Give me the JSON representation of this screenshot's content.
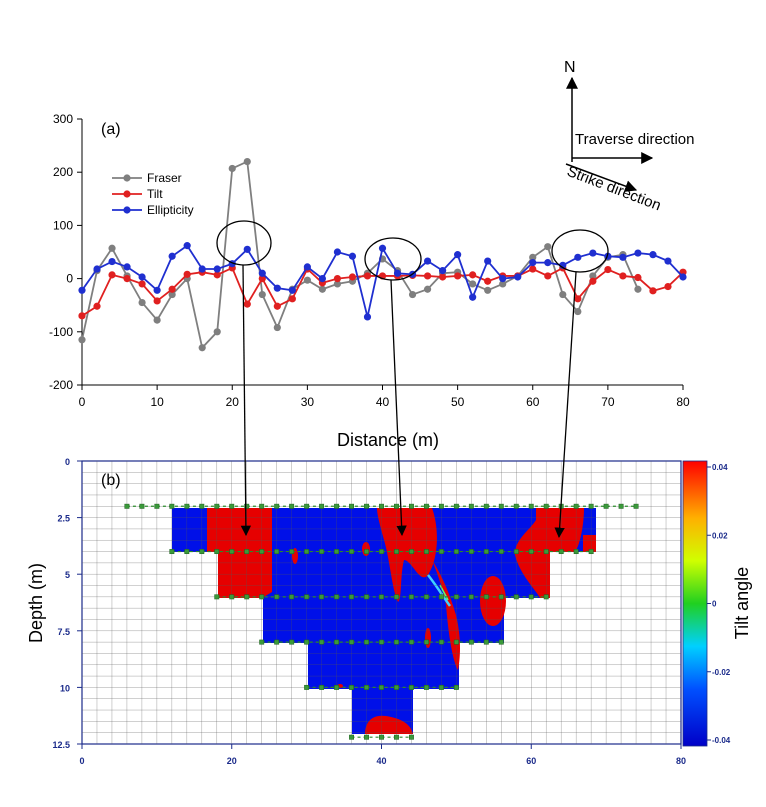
{
  "chart_data": [
    {
      "type": "line",
      "panel_label": "(a)",
      "xlabel": "Distance (m)",
      "ylabel": "",
      "xlim": [
        0,
        80
      ],
      "ylim": [
        -200,
        300
      ],
      "xticks": [
        0,
        10,
        20,
        30,
        40,
        50,
        60,
        70,
        80
      ],
      "yticks": [
        300,
        200,
        100,
        0,
        -100,
        -200
      ],
      "legend_position": "left",
      "series": [
        {
          "name": "Fraser",
          "color": "#7f7f7f",
          "x": [
            0,
            2,
            4,
            6,
            8,
            10,
            12,
            14,
            16,
            18,
            20,
            22,
            24,
            26,
            28,
            30,
            32,
            34,
            36,
            38,
            40,
            42,
            44,
            46,
            48,
            50,
            52,
            54,
            56,
            58,
            60,
            62,
            64,
            66,
            68,
            70,
            72,
            74
          ],
          "values": [
            -115,
            15,
            57,
            5,
            -45,
            -78,
            -30,
            0,
            -130,
            -100,
            207,
            220,
            -30,
            -92,
            -20,
            -3,
            -20,
            -10,
            -5,
            10,
            37,
            15,
            -30,
            -20,
            10,
            12,
            -10,
            -22,
            -10,
            5,
            40,
            60,
            -30,
            -62,
            5,
            40,
            45,
            -20
          ]
        },
        {
          "name": "Tilt",
          "color": "#e02020",
          "x": [
            0,
            2,
            4,
            6,
            8,
            10,
            12,
            14,
            16,
            18,
            20,
            22,
            24,
            26,
            28,
            30,
            32,
            34,
            36,
            38,
            40,
            42,
            44,
            46,
            48,
            50,
            52,
            54,
            56,
            58,
            60,
            62,
            64,
            66,
            68,
            70,
            72,
            74,
            76,
            78,
            80
          ],
          "values": [
            -70,
            -52,
            7,
            0,
            -10,
            -42,
            -20,
            8,
            12,
            7,
            20,
            -48,
            0,
            -52,
            -38,
            18,
            -8,
            0,
            3,
            5,
            5,
            5,
            6,
            5,
            3,
            5,
            7,
            -5,
            5,
            5,
            18,
            5,
            20,
            -38,
            -5,
            17,
            5,
            2,
            -23,
            -15,
            12
          ]
        },
        {
          "name": "Ellipticity",
          "color": "#1f2fd0",
          "x": [
            0,
            2,
            4,
            6,
            8,
            10,
            12,
            14,
            16,
            18,
            20,
            22,
            24,
            26,
            28,
            30,
            32,
            34,
            36,
            38,
            40,
            42,
            44,
            46,
            48,
            50,
            52,
            54,
            56,
            58,
            60,
            62,
            64,
            66,
            68,
            70,
            72,
            74,
            76,
            78,
            80
          ],
          "values": [
            -22,
            18,
            32,
            22,
            3,
            -22,
            42,
            62,
            18,
            18,
            28,
            55,
            10,
            -18,
            -22,
            22,
            0,
            50,
            42,
            -72,
            57,
            10,
            8,
            33,
            15,
            45,
            -35,
            33,
            0,
            3,
            30,
            30,
            25,
            40,
            48,
            42,
            40,
            48,
            45,
            33,
            3
          ]
        }
      ],
      "annotations": [
        "N",
        "Traverse direction",
        "Strike direction"
      ]
    },
    {
      "type": "heatmap",
      "panel_label": "(b)",
      "xlabel": "",
      "ylabel": "Depth (m)",
      "colorbar_label": "Tilt angle",
      "xlim": [
        0,
        80
      ],
      "ylim": [
        0,
        12.5
      ],
      "xticks": [
        0,
        20,
        40,
        60,
        80
      ],
      "yticks": [
        0,
        2.5,
        5,
        7.5,
        10,
        12.5
      ],
      "colorbar_range": [
        -0.04,
        0.04
      ],
      "colorbar_ticks": [
        "0.04",
        "0.02",
        "0",
        "-0.02",
        "-0.04"
      ],
      "color_low": "#0010e8",
      "color_high": "#e80000"
    }
  ]
}
